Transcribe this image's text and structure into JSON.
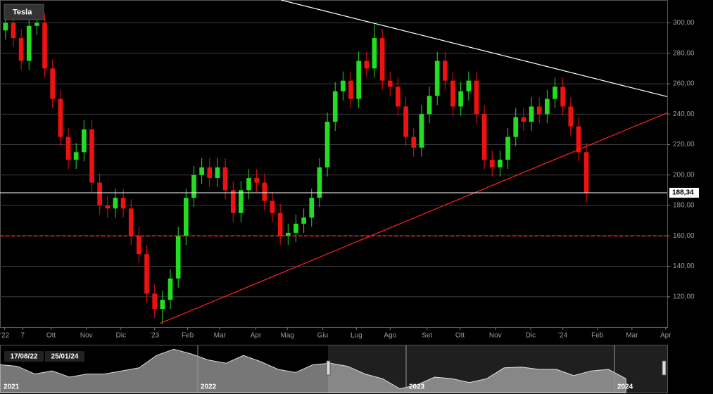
{
  "chart_data": {
    "type": "candlestick",
    "title": "Tesla",
    "up_color": "#22dd22",
    "down_color": "#ee1111",
    "x": [
      -19,
      -18,
      -17,
      -16,
      -15,
      -14,
      -13,
      -12,
      -11,
      -10,
      -9,
      -8,
      -7,
      -6,
      -5,
      -4,
      -3,
      -2,
      -1,
      0,
      1,
      2,
      3,
      4,
      5,
      6,
      7,
      8,
      9,
      10,
      11,
      12,
      13,
      14,
      15,
      16,
      17,
      18,
      19,
      20,
      21,
      22,
      23,
      24,
      25,
      26,
      27,
      28,
      29,
      30,
      31,
      32,
      33,
      34,
      35,
      36,
      37,
      38,
      39,
      40,
      41,
      42,
      43,
      44,
      45,
      46,
      47,
      48,
      49,
      50,
      51,
      52,
      53,
      54,
      55
    ],
    "open": [
      295,
      300,
      290,
      275,
      298,
      300,
      270,
      250,
      225,
      210,
      215,
      230,
      195,
      180,
      178,
      185,
      178,
      160,
      148,
      122,
      112,
      118,
      132,
      160,
      185,
      200,
      205,
      198,
      205,
      190,
      175,
      190,
      198,
      195,
      183,
      175,
      160,
      162,
      168,
      172,
      185,
      205,
      235,
      255,
      262,
      250,
      275,
      270,
      290,
      262,
      258,
      245,
      225,
      218,
      240,
      252,
      275,
      262,
      245,
      255,
      262,
      240,
      210,
      205,
      210,
      225,
      238,
      235,
      245,
      240,
      250,
      258,
      245,
      232,
      215
    ],
    "high": [
      306,
      306,
      296,
      304,
      306,
      306,
      276,
      256,
      231,
      221,
      236,
      236,
      201,
      186,
      191,
      191,
      184,
      166,
      154,
      128,
      124,
      138,
      166,
      191,
      206,
      211,
      211,
      211,
      211,
      196,
      196,
      204,
      204,
      201,
      189,
      181,
      168,
      174,
      178,
      191,
      211,
      241,
      261,
      268,
      268,
      281,
      281,
      299,
      296,
      268,
      264,
      251,
      231,
      246,
      258,
      281,
      281,
      268,
      261,
      268,
      268,
      246,
      216,
      216,
      231,
      244,
      244,
      251,
      251,
      256,
      264,
      264,
      251,
      238,
      221
    ],
    "low": [
      289,
      284,
      269,
      269,
      292,
      264,
      244,
      219,
      204,
      204,
      209,
      189,
      174,
      172,
      172,
      172,
      154,
      142,
      116,
      106,
      102,
      112,
      126,
      154,
      179,
      194,
      192,
      192,
      184,
      169,
      169,
      184,
      189,
      177,
      169,
      154,
      154,
      156,
      162,
      166,
      179,
      199,
      229,
      249,
      244,
      244,
      264,
      264,
      256,
      252,
      239,
      219,
      212,
      212,
      234,
      246,
      256,
      239,
      239,
      249,
      234,
      204,
      199,
      199,
      204,
      219,
      229,
      229,
      234,
      234,
      244,
      239,
      226,
      209,
      182
    ],
    "close": [
      300,
      290,
      275,
      298,
      300,
      270,
      250,
      225,
      210,
      215,
      230,
      195,
      180,
      178,
      185,
      178,
      160,
      148,
      122,
      112,
      118,
      132,
      160,
      185,
      200,
      205,
      198,
      205,
      190,
      175,
      190,
      198,
      195,
      183,
      175,
      160,
      162,
      168,
      172,
      185,
      205,
      235,
      255,
      262,
      250,
      275,
      270,
      290,
      262,
      258,
      245,
      225,
      218,
      240,
      252,
      275,
      262,
      245,
      255,
      262,
      240,
      210,
      205,
      210,
      225,
      238,
      235,
      245,
      240,
      250,
      258,
      245,
      232,
      215,
      188.34
    ],
    "xlim": [
      -19.7,
      65.3
    ],
    "ylim": [
      100,
      315
    ],
    "yticks": [
      {
        "value": 120,
        "label": "120,00"
      },
      {
        "value": 140,
        "label": "140,00"
      },
      {
        "value": 160,
        "label": "160,00"
      },
      {
        "value": 180,
        "label": "180,00"
      },
      {
        "value": 200,
        "label": "200,00"
      },
      {
        "value": 220,
        "label": "220,00"
      },
      {
        "value": 240,
        "label": "240,00"
      },
      {
        "value": 260,
        "label": "260,00"
      },
      {
        "value": 280,
        "label": "280,00"
      },
      {
        "value": 300,
        "label": "300,00"
      }
    ],
    "xticks": [
      {
        "value": -19.1,
        "label": "'22"
      },
      {
        "value": -16.8,
        "label": "7"
      },
      {
        "value": -13.2,
        "label": "Ott"
      },
      {
        "value": -8.7,
        "label": "Nov"
      },
      {
        "value": -4.3,
        "label": "Dic"
      },
      {
        "value": 0,
        "label": "'23"
      },
      {
        "value": 4.2,
        "label": "Feb"
      },
      {
        "value": 8.3,
        "label": "Mar"
      },
      {
        "value": 12.9,
        "label": "Apr"
      },
      {
        "value": 16.9,
        "label": "Mag"
      },
      {
        "value": 21.4,
        "label": "Giu"
      },
      {
        "value": 25.7,
        "label": "Lug"
      },
      {
        "value": 30.0,
        "label": "Ago"
      },
      {
        "value": 34.7,
        "label": "Set"
      },
      {
        "value": 38.9,
        "label": "Ott"
      },
      {
        "value": 43.4,
        "label": "Nov"
      },
      {
        "value": 47.9,
        "label": "Dic"
      },
      {
        "value": 52.0,
        "label": "'24"
      },
      {
        "value": 56.4,
        "label": "Feb"
      },
      {
        "value": 60.8,
        "label": "Mar"
      },
      {
        "value": 65.1,
        "label": "Apr"
      }
    ],
    "grid": true,
    "trend_lines": [
      {
        "color": "#ffffff",
        "x": [
          16.1,
          65.3
        ],
        "y": [
          315,
          251.5
        ]
      },
      {
        "color": "#ff2222",
        "x": [
          0.7,
          65.3
        ],
        "y": [
          102.5,
          240.9
        ]
      }
    ],
    "hlines": [
      {
        "value": 188.34,
        "label": "188,34",
        "color": "#ffffff",
        "style": "solid"
      },
      {
        "value": 160,
        "color": "#ff2222",
        "style": "dashed"
      }
    ],
    "navigator": {
      "values": [
        280,
        270,
        220,
        240,
        200,
        220,
        220,
        240,
        260,
        340,
        380,
        350,
        310,
        290,
        340,
        300,
        250,
        230,
        280,
        290,
        270,
        220,
        190,
        125,
        150,
        200,
        190,
        165,
        190,
        260,
        265,
        250,
        250,
        210,
        240,
        250,
        190
      ],
      "ylim": [
        100,
        400
      ],
      "years": [
        "2021",
        "2022",
        "2023",
        "2024"
      ],
      "range": [
        "17/08/22",
        "25/01/24"
      ]
    }
  }
}
